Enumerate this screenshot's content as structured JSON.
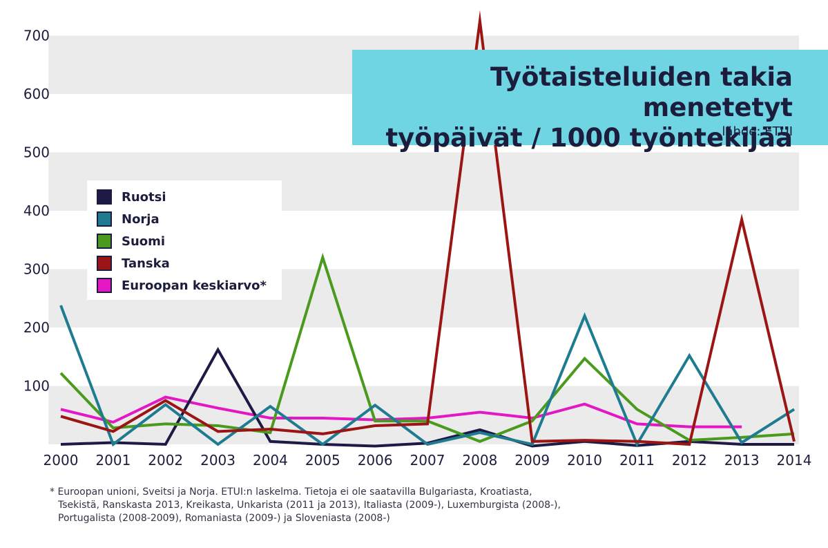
{
  "chart_data": {
    "type": "line",
    "title": "Työtaisteluiden takia menetetyt työpäivät / 1000 työntekijää",
    "title_lines": [
      "Työtaisteluiden takia menetetyt",
      "työpäivät / 1000 työntekijää"
    ],
    "source": "lähde: ETUI",
    "x": [
      "2000",
      "2001",
      "2002",
      "2003",
      "2004",
      "2005",
      "2006",
      "2007",
      "2008",
      "2009",
      "2010",
      "2011",
      "2012",
      "2013",
      "2014"
    ],
    "y_ticks": [
      "100",
      "200",
      "300",
      "400",
      "500",
      "600",
      "700"
    ],
    "ylim": [
      0,
      720
    ],
    "grid": "alternating horizontal bands",
    "legend_position": "left",
    "series": [
      {
        "name": "Ruotsi",
        "color": "#1e1a46",
        "values": [
          0,
          3,
          0,
          162,
          5,
          0,
          -3,
          2,
          25,
          -3,
          5,
          -2,
          5,
          0,
          0
        ]
      },
      {
        "name": "Norja",
        "color": "#1f7c90",
        "values": [
          238,
          0,
          68,
          0,
          65,
          0,
          67,
          0,
          20,
          0,
          220,
          0,
          152,
          3,
          60
        ]
      },
      {
        "name": "Suomi",
        "color": "#4a9a1e",
        "values": [
          122,
          28,
          35,
          32,
          20,
          320,
          40,
          40,
          5,
          40,
          147,
          60,
          7,
          12,
          18
        ]
      },
      {
        "name": "Tanska",
        "color": "#9c1515",
        "values": [
          48,
          22,
          75,
          22,
          26,
          18,
          32,
          35,
          725,
          5,
          7,
          5,
          0,
          385,
          5
        ]
      },
      {
        "name": "Euroopan keskiarvo*",
        "color": "#e318c4",
        "values": [
          60,
          38,
          81,
          62,
          45,
          45,
          42,
          45,
          55,
          45,
          69,
          35,
          30,
          30,
          null
        ]
      }
    ]
  },
  "footnote": [
    "* Euroopan unioni, Sveitsi ja Norja. ETUI:n laskelma. Tietoja ei ole saatavilla Bulgariasta, Kroatiasta,",
    "Tsekistä, Ranskasta 2013, Kreikasta, Unkarista (2011 ja 2013), Italiasta (2009-), Luxemburgista (2008-),",
    "Portugalista (2008-2009), Romaniasta (2009-) ja Sloveniasta (2008-)"
  ]
}
